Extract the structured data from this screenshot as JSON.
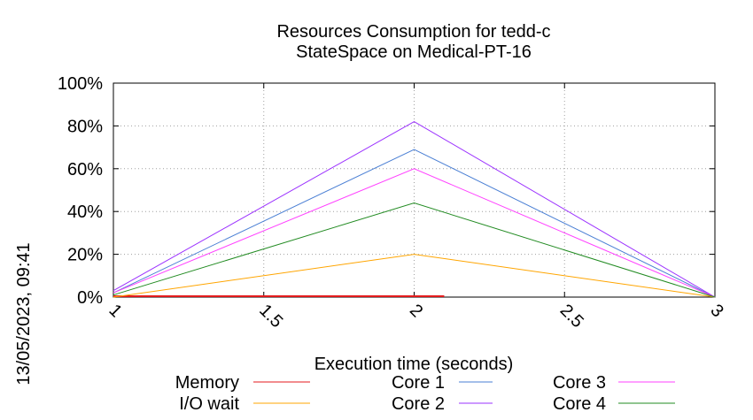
{
  "chart_data": {
    "type": "line",
    "title": [
      "Resources Consumption for tedd-c",
      "StateSpace on Medical-PT-16"
    ],
    "xlabel": "Execution time (seconds)",
    "ylabel": "",
    "side_label": "13/05/2023, 09:41",
    "x": [
      1,
      2,
      3
    ],
    "xlim": [
      1,
      3
    ],
    "ylim": [
      0,
      100
    ],
    "xticks": [
      "1",
      "1.5",
      "2",
      "2.5",
      "3"
    ],
    "xtick_values": [
      1,
      1.5,
      2,
      2.5,
      3
    ],
    "yticks": [
      "0%",
      "20%",
      "40%",
      "60%",
      "80%",
      "100%"
    ],
    "ytick_values": [
      0,
      20,
      40,
      60,
      80,
      100
    ],
    "grid": true,
    "legend_position": "bottom",
    "series": [
      {
        "name": "Memory",
        "color": "#e41a1c",
        "x": [
          1,
          2,
          2.1
        ],
        "values": [
          0.4,
          0.4,
          0.4
        ]
      },
      {
        "name": "I/O wait",
        "color": "#ffa500",
        "x": [
          1,
          2,
          3
        ],
        "values": [
          0,
          20,
          0
        ]
      },
      {
        "name": "Core 1",
        "color": "#4a7fd4",
        "x": [
          1,
          2,
          3
        ],
        "values": [
          2,
          69,
          0
        ]
      },
      {
        "name": "Core 2",
        "color": "#9b30ff",
        "x": [
          1,
          2,
          3
        ],
        "values": [
          3,
          82,
          0
        ]
      },
      {
        "name": "Core 3",
        "color": "#ff40ff",
        "x": [
          1,
          2,
          3
        ],
        "values": [
          2,
          60,
          0
        ]
      },
      {
        "name": "Core 4",
        "color": "#228b22",
        "x": [
          1,
          2,
          3
        ],
        "values": [
          1,
          44,
          0
        ]
      }
    ]
  }
}
